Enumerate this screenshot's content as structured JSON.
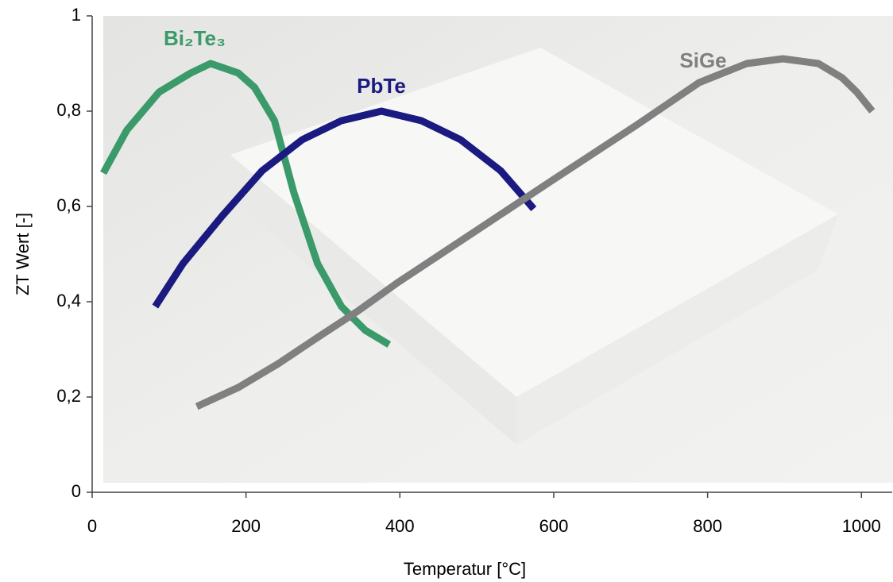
{
  "chart_data": {
    "type": "line",
    "x_label": "Temperatur [°C]",
    "y_label": "ZT Wert [-]",
    "xlim": [
      0,
      1040
    ],
    "ylim": [
      0,
      1
    ],
    "xticks": [
      0,
      200,
      400,
      600,
      800,
      1000
    ],
    "yticks": [
      0,
      {
        "value": 0.2,
        "label": "0,2"
      },
      {
        "value": 0.4,
        "label": "0,4"
      },
      {
        "value": 0.6,
        "label": "0,6"
      },
      {
        "value": 0.8,
        "label": "0,8"
      },
      1
    ],
    "grid": false,
    "series": [
      {
        "name": "Bi₂Te₃",
        "color": "#3a9a6a",
        "x": [
          14.5,
          45,
          87,
          128,
          154,
          190,
          211,
          237,
          262,
          293,
          324,
          355,
          386
        ],
        "values": [
          0.67,
          0.76,
          0.84,
          0.88,
          0.9,
          0.88,
          0.85,
          0.78,
          0.63,
          0.48,
          0.39,
          0.34,
          0.31
        ]
      },
      {
        "name": "PbTe",
        "color": "#1a1a80",
        "x": [
          82,
          118,
          169,
          221,
          273,
          324,
          376,
          428,
          479,
          531,
          574
        ],
        "values": [
          0.39,
          0.48,
          0.58,
          0.675,
          0.74,
          0.78,
          0.8,
          0.78,
          0.74,
          0.675,
          0.595
        ]
      },
      {
        "name": "SiGe",
        "color": "#808080",
        "x": [
          136,
          190,
          242,
          293,
          345,
          397,
          500,
          603,
          707,
          789,
          851,
          898,
          944,
          975,
          994,
          1014
        ],
        "values": [
          0.18,
          0.22,
          0.27,
          0.325,
          0.38,
          0.44,
          0.55,
          0.66,
          0.77,
          0.86,
          0.9,
          0.91,
          0.9,
          0.87,
          0.84,
          0.8
        ]
      }
    ]
  }
}
